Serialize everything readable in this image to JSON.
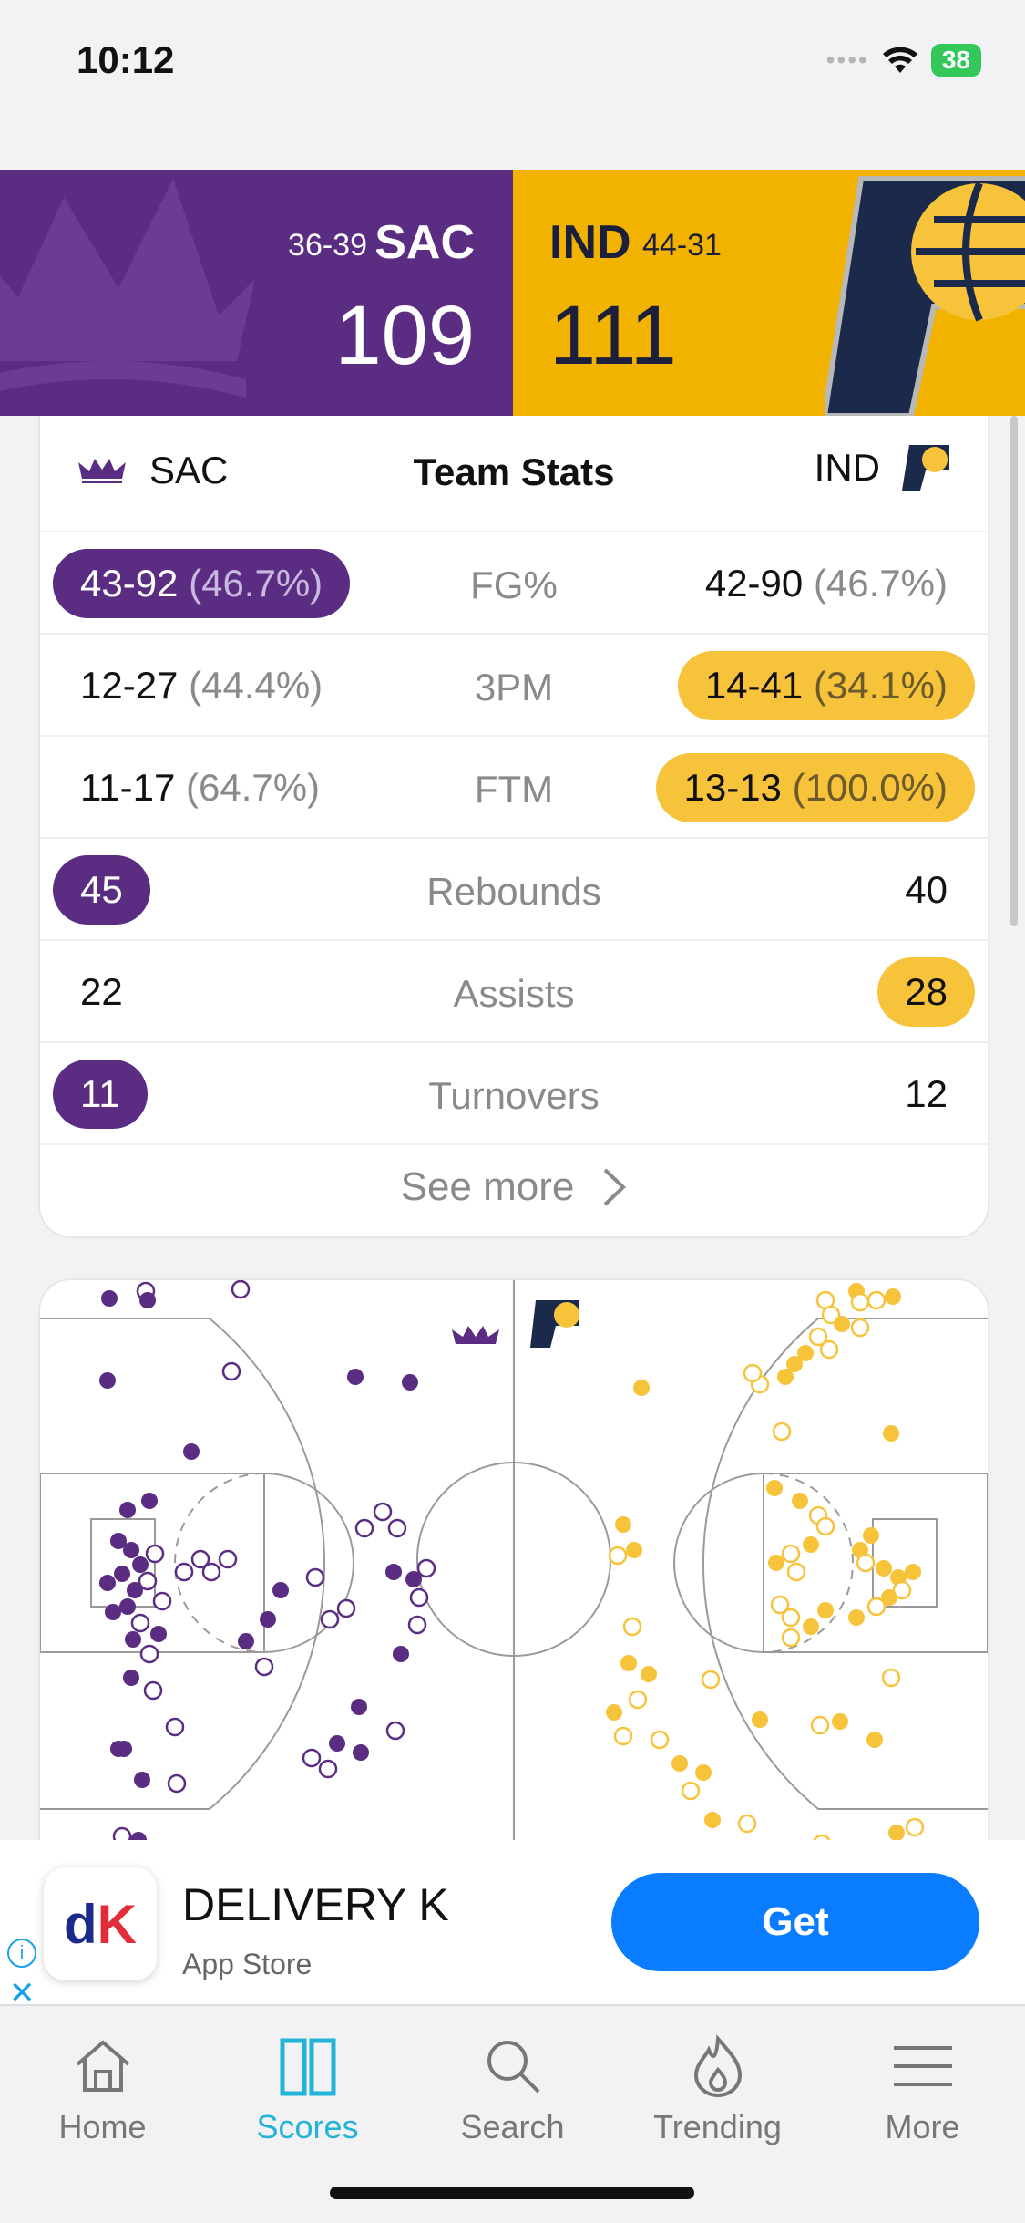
{
  "status_bar": {
    "time": "10:12",
    "battery": "38"
  },
  "game": {
    "away": {
      "abbr": "SAC",
      "record": "36-39",
      "score": "109",
      "color": "#5a2d82"
    },
    "home": {
      "abbr": "IND",
      "record": "44-31",
      "score": "111",
      "color": "#f2b300"
    }
  },
  "team_stats": {
    "title": "Team Stats",
    "left_team": "SAC",
    "right_team": "IND",
    "rows": [
      {
        "label": "FG%",
        "left_main": "43-92",
        "left_pct": "(46.7%)",
        "right_main": "42-90",
        "right_pct": "(46.7%)",
        "highlight": "left"
      },
      {
        "label": "3PM",
        "left_main": "12-27",
        "left_pct": "(44.4%)",
        "right_main": "14-41",
        "right_pct": "(34.1%)",
        "highlight": "right"
      },
      {
        "label": "FTM",
        "left_main": "11-17",
        "left_pct": "(64.7%)",
        "right_main": "13-13",
        "right_pct": "(100.0%)",
        "highlight": "right"
      },
      {
        "label": "Rebounds",
        "left_main": "45",
        "left_pct": "",
        "right_main": "40",
        "right_pct": "",
        "highlight": "left"
      },
      {
        "label": "Assists",
        "left_main": "22",
        "left_pct": "",
        "right_main": "28",
        "right_pct": "",
        "highlight": "right"
      },
      {
        "label": "Turnovers",
        "left_main": "11",
        "left_pct": "",
        "right_main": "12",
        "right_pct": "",
        "highlight": "left"
      }
    ],
    "see_more": "See more"
  },
  "ad": {
    "title": "DELIVERY K",
    "subtitle": "App Store",
    "cta": "Get",
    "logo_d": "d",
    "logo_k": "K"
  },
  "tabbar": {
    "items": [
      {
        "label": "Home",
        "icon": "home-icon"
      },
      {
        "label": "Scores",
        "icon": "scores-icon",
        "active": true
      },
      {
        "label": "Search",
        "icon": "search-icon"
      },
      {
        "label": "Trending",
        "icon": "trending-icon"
      },
      {
        "label": "More",
        "icon": "menu-icon"
      }
    ]
  }
}
